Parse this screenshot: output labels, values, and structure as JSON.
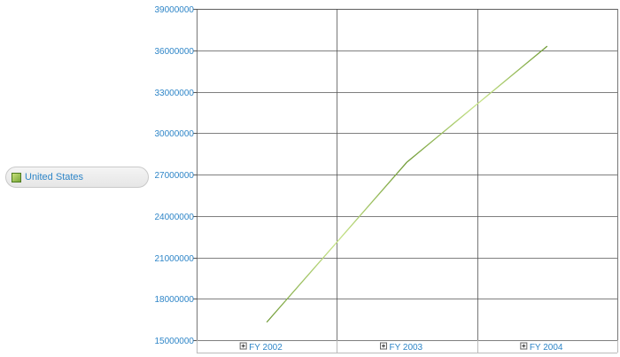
{
  "legend": {
    "items": [
      {
        "label": "United States",
        "color": "#8fb84a"
      }
    ]
  },
  "chart_data": {
    "type": "line",
    "categories": [
      "FY 2002",
      "FY 2003",
      "FY 2004"
    ],
    "series": [
      {
        "name": "United States",
        "values": [
          16300000,
          27900000,
          36300000
        ],
        "color": "#9ccc4f"
      }
    ],
    "ylim": [
      15000000,
      39000000
    ],
    "yticks": [
      15000000,
      18000000,
      21000000,
      24000000,
      27000000,
      30000000,
      33000000,
      36000000,
      39000000
    ],
    "grid": true,
    "legend_position": "left",
    "colors": {
      "axis_text": "#2f86c8",
      "grid": "#555555"
    }
  }
}
